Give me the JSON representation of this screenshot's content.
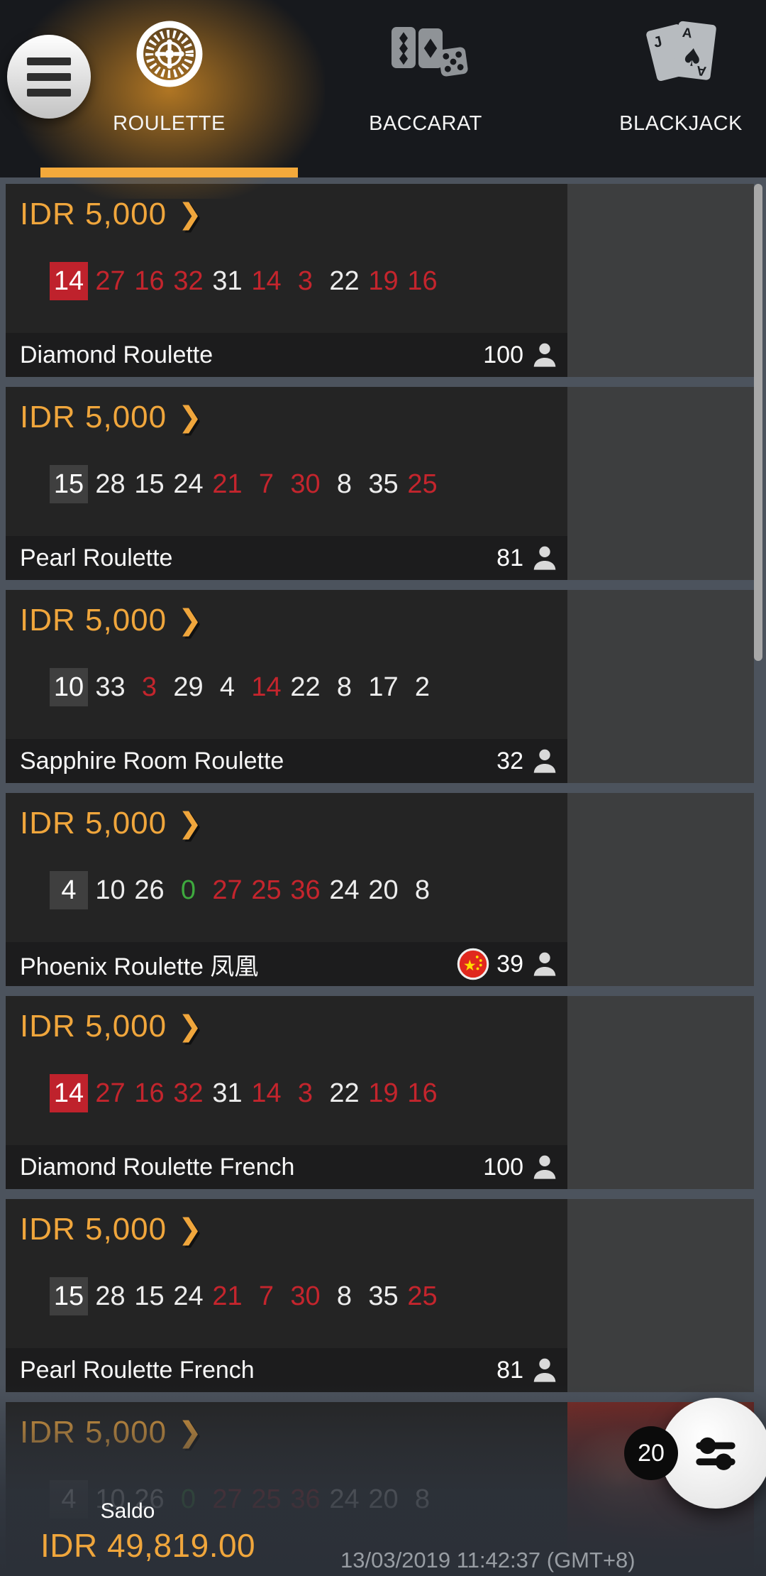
{
  "header": {
    "menu": {
      "icon": "hamburger-menu-icon"
    },
    "tabs": [
      {
        "id": "roulette",
        "label": "ROULETTE",
        "icon": "roulette-wheel-icon",
        "active": true
      },
      {
        "id": "baccarat",
        "label": "BACCARAT",
        "icon": "baccarat-cards-dice-icon",
        "active": false
      },
      {
        "id": "blackjack",
        "label": "BLACKJACK",
        "icon": "blackjack-cards-icon",
        "active": false
      }
    ]
  },
  "games": [
    {
      "stake": "IDR 5,000",
      "name": "Diamond Roulette",
      "players": "100",
      "numbers": [
        {
          "value": "14",
          "color": "red",
          "highlight": true
        },
        {
          "value": "27",
          "color": "red"
        },
        {
          "value": "16",
          "color": "red"
        },
        {
          "value": "32",
          "color": "red"
        },
        {
          "value": "31",
          "color": "black"
        },
        {
          "value": "14",
          "color": "red"
        },
        {
          "value": "3",
          "color": "red"
        },
        {
          "value": "22",
          "color": "black"
        },
        {
          "value": "19",
          "color": "red"
        },
        {
          "value": "16",
          "color": "red"
        }
      ]
    },
    {
      "stake": "IDR 5,000",
      "name": "Pearl Roulette",
      "players": "81",
      "numbers": [
        {
          "value": "15",
          "color": "black",
          "highlight": true
        },
        {
          "value": "28",
          "color": "black"
        },
        {
          "value": "15",
          "color": "black"
        },
        {
          "value": "24",
          "color": "black"
        },
        {
          "value": "21",
          "color": "red"
        },
        {
          "value": "7",
          "color": "red"
        },
        {
          "value": "30",
          "color": "red"
        },
        {
          "value": "8",
          "color": "black"
        },
        {
          "value": "35",
          "color": "black"
        },
        {
          "value": "25",
          "color": "red"
        }
      ]
    },
    {
      "stake": "IDR 5,000",
      "name": "Sapphire Room Roulette",
      "players": "32",
      "numbers": [
        {
          "value": "10",
          "color": "black",
          "highlight": true
        },
        {
          "value": "33",
          "color": "black"
        },
        {
          "value": "3",
          "color": "red"
        },
        {
          "value": "29",
          "color": "black"
        },
        {
          "value": "4",
          "color": "black"
        },
        {
          "value": "14",
          "color": "red"
        },
        {
          "value": "22",
          "color": "black"
        },
        {
          "value": "8",
          "color": "black"
        },
        {
          "value": "17",
          "color": "black"
        },
        {
          "value": "2",
          "color": "black"
        }
      ]
    },
    {
      "stake": "IDR 5,000",
      "name": "Phoenix Roulette 凤凰",
      "players": "39",
      "china_flag": true,
      "numbers": [
        {
          "value": "4",
          "color": "black",
          "highlight": true
        },
        {
          "value": "10",
          "color": "black"
        },
        {
          "value": "26",
          "color": "black"
        },
        {
          "value": "0",
          "color": "green"
        },
        {
          "value": "27",
          "color": "red"
        },
        {
          "value": "25",
          "color": "red"
        },
        {
          "value": "36",
          "color": "red"
        },
        {
          "value": "24",
          "color": "black"
        },
        {
          "value": "20",
          "color": "black"
        },
        {
          "value": "8",
          "color": "black"
        }
      ]
    },
    {
      "stake": "IDR 5,000",
      "name": "Diamond Roulette French",
      "players": "100",
      "numbers": [
        {
          "value": "14",
          "color": "red",
          "highlight": true
        },
        {
          "value": "27",
          "color": "red"
        },
        {
          "value": "16",
          "color": "red"
        },
        {
          "value": "32",
          "color": "red"
        },
        {
          "value": "31",
          "color": "black"
        },
        {
          "value": "14",
          "color": "red"
        },
        {
          "value": "3",
          "color": "red"
        },
        {
          "value": "22",
          "color": "black"
        },
        {
          "value": "19",
          "color": "red"
        },
        {
          "value": "16",
          "color": "red"
        }
      ]
    },
    {
      "stake": "IDR 5,000",
      "name": "Pearl Roulette French",
      "players": "81",
      "numbers": [
        {
          "value": "15",
          "color": "black",
          "highlight": true
        },
        {
          "value": "28",
          "color": "black"
        },
        {
          "value": "15",
          "color": "black"
        },
        {
          "value": "24",
          "color": "black"
        },
        {
          "value": "21",
          "color": "red"
        },
        {
          "value": "7",
          "color": "red"
        },
        {
          "value": "30",
          "color": "red"
        },
        {
          "value": "8",
          "color": "black"
        },
        {
          "value": "35",
          "color": "black"
        },
        {
          "value": "25",
          "color": "red"
        }
      ]
    },
    {
      "stake": "IDR 5,000",
      "name": "",
      "players": "",
      "hide_footer": true,
      "preview_image": true,
      "numbers": [
        {
          "value": "4",
          "color": "black",
          "highlight": true
        },
        {
          "value": "10",
          "color": "black"
        },
        {
          "value": "26",
          "color": "black"
        },
        {
          "value": "0",
          "color": "green"
        },
        {
          "value": "27",
          "color": "red"
        },
        {
          "value": "25",
          "color": "red"
        },
        {
          "value": "36",
          "color": "red"
        },
        {
          "value": "24",
          "color": "black"
        },
        {
          "value": "20",
          "color": "black"
        },
        {
          "value": "8",
          "color": "black"
        }
      ]
    }
  ],
  "fab": {
    "badge_count": "20",
    "icon": "filter-sliders-icon"
  },
  "balance_bar": {
    "saldo_label": "Saldo",
    "balance": "IDR 49,819.00",
    "timestamp": "13/03/2019 11:42:37 (GMT+8)"
  },
  "colors": {
    "accent_orange": "#F0A63C",
    "tab_underline": "#F3A93B",
    "number_red": "#C4252D",
    "number_green": "#3EA93E",
    "red_highlight_bg": "#BF222C",
    "black_highlight_bg": "#3F3F3F",
    "page_background": "#4C535D",
    "header_background": "#17191D",
    "card_background": "#242424",
    "card_footer_background": "#1C1C1D",
    "preview_panel": "#3D3E3F"
  }
}
